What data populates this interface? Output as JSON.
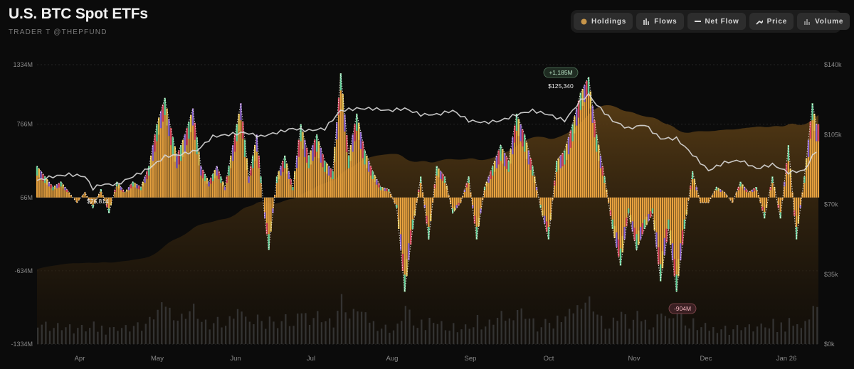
{
  "header": {
    "title": "U.S. BTC Spot ETFs",
    "subtitle": "TRADER T @THEPFUND"
  },
  "toggles": [
    {
      "label": "Holdings",
      "icon": "dot-icon",
      "color": "#c8964a"
    },
    {
      "label": "Flows",
      "icon": "bar-icon"
    },
    {
      "label": "Net Flow",
      "icon": "line-icon"
    },
    {
      "label": "Price",
      "icon": "trend-icon"
    },
    {
      "label": "Volume",
      "icon": "volume-icon"
    }
  ],
  "chart_data": {
    "type": "bar",
    "title": "U.S. BTC Spot ETFs",
    "y_left": {
      "ticks": [
        "1334M",
        "766M",
        "66M",
        "-634M",
        "-1334M"
      ],
      "tick_values": [
        1334,
        766,
        66,
        -634,
        -1334
      ],
      "range": [
        -1334,
        1334
      ]
    },
    "y_right": {
      "ticks": [
        "$140k",
        "$105k",
        "$70k",
        "$35k",
        "$0k"
      ],
      "tick_values": [
        140,
        105,
        70,
        35,
        0
      ],
      "range": [
        0,
        140
      ]
    },
    "x_ticks": [
      "Apr",
      "May",
      "Jun",
      "Jul",
      "Aug",
      "Sep",
      "Oct",
      "Nov",
      "Dec",
      "Jan 26"
    ],
    "annotations": {
      "max_flow": "+1,185M",
      "max_price": "$125,340",
      "min_price": "$76,814",
      "min_flow": "-904M"
    },
    "colors": {
      "net_flow_fill": "#e8a23f",
      "holdings_fill": "#5c3f16",
      "price_line": "#d9d9d9",
      "volume": "#3a3a3a",
      "flow_green": "#5fcf9a",
      "flow_red": "#d9435e",
      "flow_purple": "#8a63d2",
      "flow_yellow": "#e8c552"
    },
    "flow_series": [
      {
        "name": "Net Flow",
        "points": [
          [
            0,
            300
          ],
          [
            4,
            200
          ],
          [
            8,
            100
          ],
          [
            12,
            150
          ],
          [
            16,
            50
          ],
          [
            20,
            -50
          ],
          [
            24,
            50
          ],
          [
            28,
            -100
          ],
          [
            32,
            80
          ],
          [
            36,
            -150
          ],
          [
            40,
            150
          ],
          [
            44,
            50
          ],
          [
            48,
            150
          ],
          [
            52,
            100
          ],
          [
            56,
            300
          ],
          [
            60,
            700
          ],
          [
            64,
            950
          ],
          [
            66,
            750
          ],
          [
            70,
            400
          ],
          [
            74,
            600
          ],
          [
            78,
            850
          ],
          [
            82,
            300
          ],
          [
            86,
            150
          ],
          [
            90,
            300
          ],
          [
            94,
            100
          ],
          [
            98,
            500
          ],
          [
            102,
            900
          ],
          [
            106,
            200
          ],
          [
            110,
            600
          ],
          [
            114,
            -200
          ],
          [
            116,
            -500
          ],
          [
            120,
            200
          ],
          [
            124,
            400
          ],
          [
            128,
            100
          ],
          [
            132,
            700
          ],
          [
            136,
            400
          ],
          [
            140,
            600
          ],
          [
            144,
            350
          ],
          [
            148,
            250
          ],
          [
            152,
            1185
          ],
          [
            156,
            400
          ],
          [
            160,
            800
          ],
          [
            164,
            450
          ],
          [
            168,
            250
          ],
          [
            172,
            100
          ],
          [
            176,
            80
          ],
          [
            180,
            -100
          ],
          [
            184,
            -900
          ],
          [
            188,
            -300
          ],
          [
            192,
            200
          ],
          [
            196,
            -400
          ],
          [
            200,
            300
          ],
          [
            204,
            200
          ],
          [
            208,
            -150
          ],
          [
            212,
            -50
          ],
          [
            216,
            200
          ],
          [
            220,
            -400
          ],
          [
            224,
            100
          ],
          [
            228,
            300
          ],
          [
            232,
            500
          ],
          [
            236,
            350
          ],
          [
            240,
            800
          ],
          [
            244,
            600
          ],
          [
            248,
            300
          ],
          [
            252,
            -100
          ],
          [
            256,
            -400
          ],
          [
            260,
            350
          ],
          [
            264,
            450
          ],
          [
            268,
            700
          ],
          [
            272,
            1000
          ],
          [
            276,
            1150
          ],
          [
            280,
            600
          ],
          [
            284,
            200
          ],
          [
            288,
            -300
          ],
          [
            292,
            -650
          ],
          [
            296,
            -150
          ],
          [
            300,
            -500
          ],
          [
            304,
            -300
          ],
          [
            308,
            -150
          ],
          [
            312,
            -800
          ],
          [
            316,
            -300
          ],
          [
            320,
            -900
          ],
          [
            324,
            -300
          ],
          [
            328,
            250
          ],
          [
            332,
            -50
          ],
          [
            336,
            -50
          ],
          [
            340,
            100
          ],
          [
            344,
            50
          ],
          [
            348,
            -50
          ],
          [
            352,
            150
          ],
          [
            356,
            50
          ],
          [
            360,
            100
          ],
          [
            364,
            -200
          ],
          [
            368,
            200
          ],
          [
            372,
            -200
          ],
          [
            376,
            500
          ],
          [
            380,
            -400
          ],
          [
            384,
            200
          ],
          [
            388,
            900
          ],
          [
            390,
            700
          ]
        ]
      }
    ],
    "price_series": [
      {
        "name": "Price",
        "points": [
          [
            0,
            82
          ],
          [
            8,
            84
          ],
          [
            16,
            85
          ],
          [
            24,
            84
          ],
          [
            28,
            78
          ],
          [
            32,
            80
          ],
          [
            40,
            80
          ],
          [
            48,
            84
          ],
          [
            56,
            88
          ],
          [
            64,
            94
          ],
          [
            72,
            95
          ],
          [
            80,
            97
          ],
          [
            88,
            104
          ],
          [
            96,
            105
          ],
          [
            104,
            106
          ],
          [
            112,
            104
          ],
          [
            120,
            106
          ],
          [
            128,
            108
          ],
          [
            136,
            107
          ],
          [
            144,
            108
          ],
          [
            152,
            117
          ],
          [
            160,
            118
          ],
          [
            168,
            118
          ],
          [
            176,
            117
          ],
          [
            184,
            118
          ],
          [
            192,
            115
          ],
          [
            200,
            115
          ],
          [
            208,
            117
          ],
          [
            216,
            112
          ],
          [
            224,
            111
          ],
          [
            232,
            112
          ],
          [
            240,
            115
          ],
          [
            248,
            117
          ],
          [
            256,
            115
          ],
          [
            264,
            112
          ],
          [
            272,
            122
          ],
          [
            276,
            125
          ],
          [
            280,
            120
          ],
          [
            288,
            112
          ],
          [
            296,
            108
          ],
          [
            304,
            110
          ],
          [
            312,
            103
          ],
          [
            320,
            103
          ],
          [
            328,
            95
          ],
          [
            336,
            87
          ],
          [
            344,
            91
          ],
          [
            352,
            92
          ],
          [
            360,
            88
          ],
          [
            368,
            90
          ],
          [
            376,
            86
          ],
          [
            384,
            87
          ],
          [
            388,
            94
          ],
          [
            390,
            97
          ]
        ]
      }
    ]
  }
}
